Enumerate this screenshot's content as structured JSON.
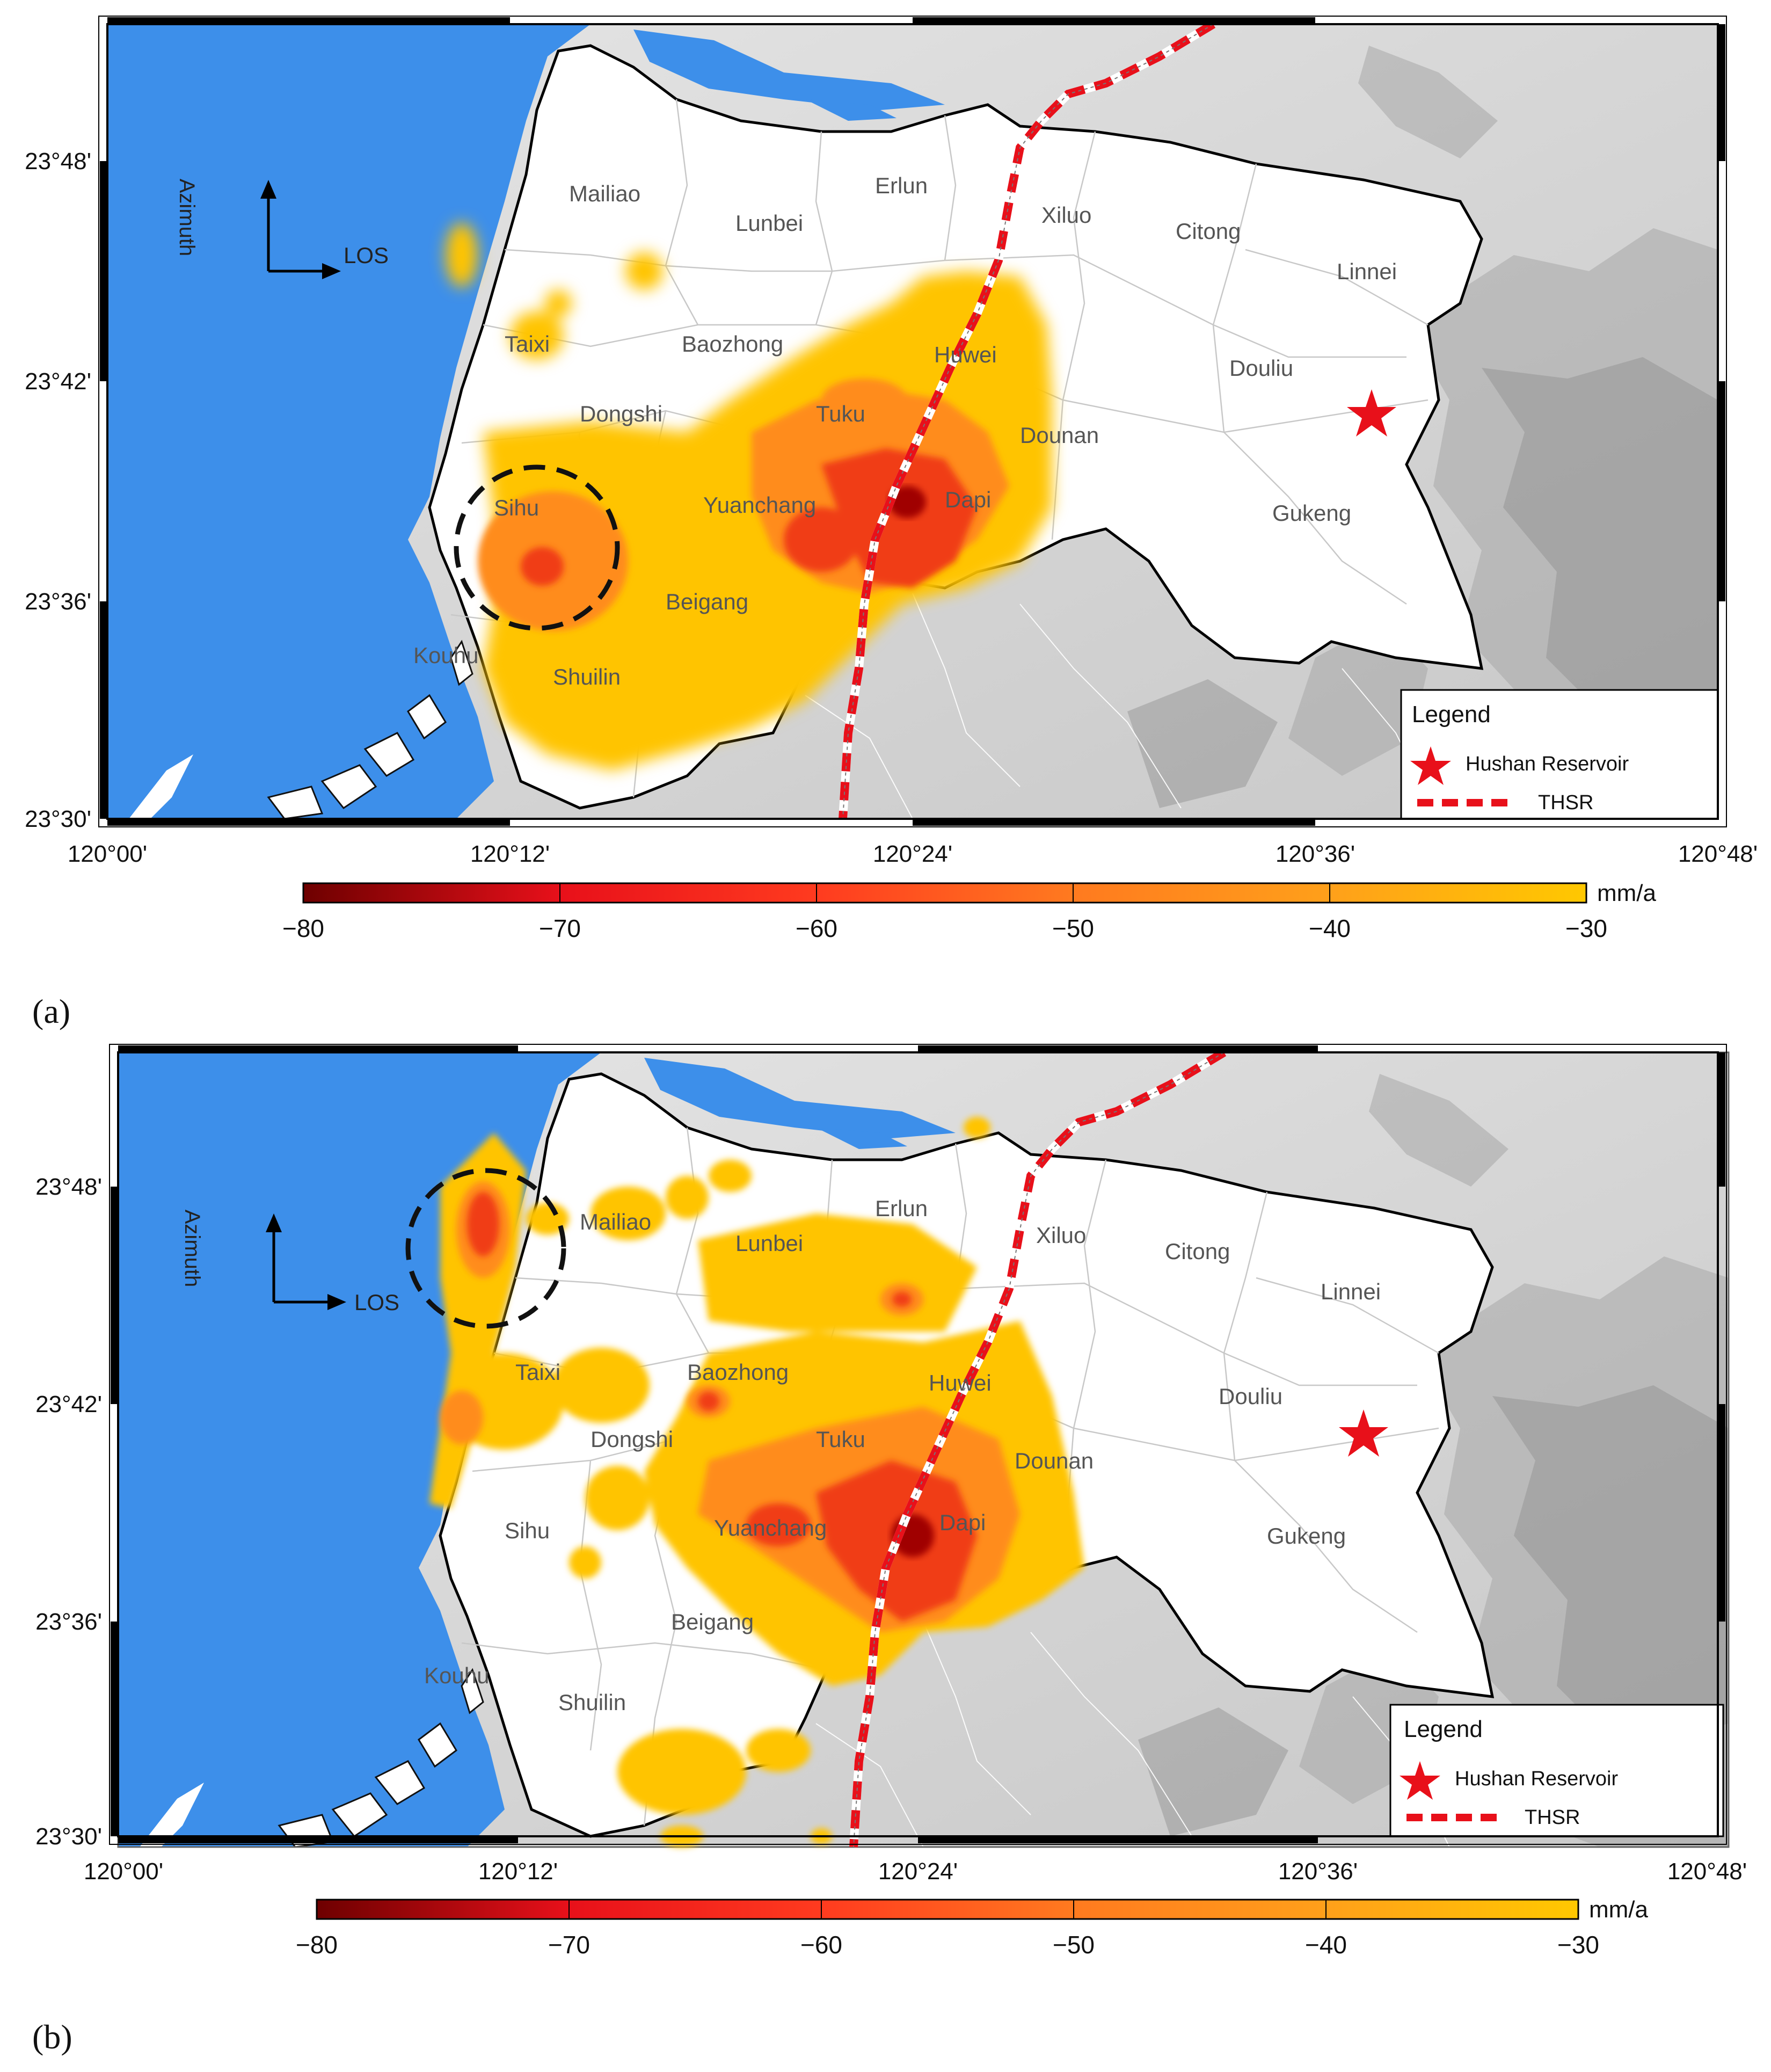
{
  "panels": [
    {
      "id": "a",
      "panel_label": "(a)",
      "places": [
        "Mailiao",
        "Lunbei",
        "Erlun",
        "Xiluo",
        "Citong",
        "Linnei",
        "Taixi",
        "Baozhong",
        "Huwei",
        "Douliu",
        "Dongshi",
        "Tuku",
        "Dounan",
        "Sihu",
        "Yuanchang",
        "Dapi",
        "Gukeng",
        "Beigang",
        "Kouhu",
        "Shuilin"
      ],
      "highlight_circle_place": "Sihu"
    },
    {
      "id": "b",
      "panel_label": "(b)",
      "places": [
        "Mailiao",
        "Lunbei",
        "Erlun",
        "Xiluo",
        "Citong",
        "Linnei",
        "Taixi",
        "Baozhong",
        "Huwei",
        "Douliu",
        "Dongshi",
        "Tuku",
        "Dounan",
        "Sihu",
        "Yuanchang",
        "Dapi",
        "Gukeng",
        "Beigang",
        "Kouhu",
        "Shuilin"
      ],
      "highlight_circle_place": "Mailiao coast"
    }
  ],
  "axes": {
    "lon_ticks": [
      "120°00'",
      "120°12'",
      "120°24'",
      "120°36'",
      "120°48'"
    ],
    "lat_ticks": [
      "23°48'",
      "23°42'",
      "23°36'",
      "23°30'"
    ]
  },
  "direction_labels": {
    "azimuth": "Azimuth",
    "los": "LOS"
  },
  "legend": {
    "title": "Legend",
    "items": [
      {
        "symbol": "star-icon",
        "label": "Hushan Reservoir",
        "color": "#e8101a"
      },
      {
        "symbol": "dashed-line",
        "label": "THSR",
        "color": "#e8101a"
      }
    ]
  },
  "colorbar": {
    "unit": "mm/a",
    "ticks": [
      "−80",
      "−70",
      "−60",
      "−50",
      "−40",
      "−30"
    ],
    "range": [
      -80,
      -30
    ],
    "colors": [
      "#6e0000",
      "#e8101a",
      "#ff3b1f",
      "#ff7a1f",
      "#ffa01a",
      "#ffc800"
    ]
  },
  "colors": {
    "sea": "#3d8fea",
    "land": "#ffffff",
    "terrain": "#dcdcdc",
    "subsidence_low": "#ffc400",
    "subsidence_mid": "#ff8c1a",
    "subsidence_high": "#f03c18",
    "subsidence_max": "#a00000"
  }
}
